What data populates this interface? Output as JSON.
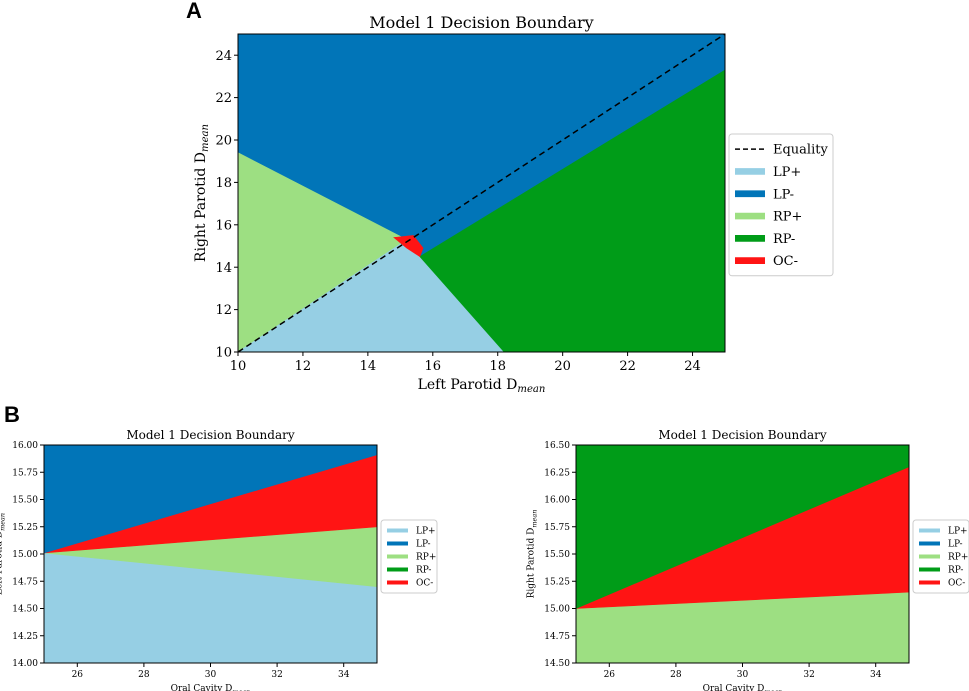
{
  "panel_labels": {
    "a": "A",
    "b": "B"
  },
  "colors": {
    "lp_plus": "#96cfe4",
    "lp_minus": "#0175b8",
    "rp_plus": "#9ddf82",
    "rp_minus": "#009c18",
    "oc_minus": "#ff1414",
    "equality": "#000000"
  },
  "chart_data": [
    {
      "type": "decision-boundary",
      "title": "Model 1 Decision Boundary",
      "xlabel": {
        "main": "Left Parotid D",
        "sub": "mean"
      },
      "ylabel": {
        "main": "Right Parotid D",
        "sub": "mean"
      },
      "xlim": [
        10,
        25
      ],
      "ylim": [
        10,
        25
      ],
      "xticks": [
        "10",
        "12",
        "14",
        "16",
        "18",
        "20",
        "22",
        "24"
      ],
      "yticks": [
        "10",
        "12",
        "14",
        "16",
        "18",
        "20",
        "22",
        "24"
      ],
      "regions": [
        {
          "class": "LP-",
          "color_key": "lp_minus",
          "polygon": [
            [
              10,
              25
            ],
            [
              25,
              25
            ],
            [
              25,
              23.3
            ],
            [
              15.6,
              14.5
            ],
            [
              15.2,
              15.3
            ],
            [
              10,
              19.4
            ]
          ]
        },
        {
          "class": "RP+",
          "color_key": "rp_plus",
          "polygon": [
            [
              10,
              19.4
            ],
            [
              15.2,
              15.3
            ],
            [
              10,
              10
            ]
          ]
        },
        {
          "class": "LP+",
          "color_key": "lp_plus",
          "polygon": [
            [
              10,
              10
            ],
            [
              15.2,
              15.3
            ],
            [
              15.6,
              14.5
            ],
            [
              18.2,
              10
            ]
          ]
        },
        {
          "class": "RP-",
          "color_key": "rp_minus",
          "polygon": [
            [
              18.2,
              10
            ],
            [
              15.6,
              14.5
            ],
            [
              25,
              23.3
            ],
            [
              25,
              10
            ]
          ]
        },
        {
          "class": "OC-",
          "color_key": "oc_minus",
          "polygon": [
            [
              14.8,
              15.4
            ],
            [
              15.4,
              15.5
            ],
            [
              15.7,
              14.9
            ],
            [
              15.6,
              14.5
            ],
            [
              15.2,
              14.9
            ]
          ]
        }
      ],
      "equality_line": [
        [
          10,
          10
        ],
        [
          25,
          25
        ]
      ],
      "legend": [
        {
          "label": "Equality",
          "style": "dashed",
          "color_key": "equality"
        },
        {
          "label": "LP+",
          "color_key": "lp_plus"
        },
        {
          "label": "LP-",
          "color_key": "lp_minus"
        },
        {
          "label": "RP+",
          "color_key": "rp_plus"
        },
        {
          "label": "RP-",
          "color_key": "rp_minus"
        },
        {
          "label": "OC-",
          "color_key": "oc_minus"
        }
      ],
      "legend_position": "right"
    },
    {
      "type": "decision-boundary",
      "title": "Model 1 Decision Boundary",
      "xlabel": {
        "main": "Oral Cavity D",
        "sub": "mean"
      },
      "ylabel": {
        "main": "Left Parotid D",
        "sub": "mean"
      },
      "xlim": [
        25,
        35
      ],
      "ylim": [
        14.0,
        16.0
      ],
      "xticks": [
        "26",
        "28",
        "30",
        "32",
        "34"
      ],
      "yticks": [
        "14.00",
        "14.25",
        "14.50",
        "14.75",
        "15.00",
        "15.25",
        "15.50",
        "15.75",
        "16.00"
      ],
      "regions": [
        {
          "class": "LP+",
          "color_key": "lp_plus",
          "polygon": [
            [
              25,
              14.0
            ],
            [
              35,
              14.0
            ],
            [
              35,
              14.7
            ],
            [
              25,
              15.01
            ]
          ]
        },
        {
          "class": "RP+",
          "color_key": "rp_plus",
          "polygon": [
            [
              25,
              15.01
            ],
            [
              35,
              14.7
            ],
            [
              35,
              15.25
            ]
          ]
        },
        {
          "class": "OC-",
          "color_key": "oc_minus",
          "polygon": [
            [
              25,
              15.01
            ],
            [
              35,
              15.25
            ],
            [
              35,
              15.91
            ]
          ]
        },
        {
          "class": "LP-",
          "color_key": "lp_minus",
          "polygon": [
            [
              25,
              15.01
            ],
            [
              35,
              15.91
            ],
            [
              35,
              16.0
            ],
            [
              25,
              16.0
            ]
          ]
        }
      ],
      "legend": [
        {
          "label": "LP+",
          "color_key": "lp_plus"
        },
        {
          "label": "LP-",
          "color_key": "lp_minus"
        },
        {
          "label": "RP+",
          "color_key": "rp_plus"
        },
        {
          "label": "RP-",
          "color_key": "rp_minus"
        },
        {
          "label": "OC-",
          "color_key": "oc_minus"
        }
      ],
      "legend_position": "right"
    },
    {
      "type": "decision-boundary",
      "title": "Model 1 Decision Boundary",
      "xlabel": {
        "main": "Oral Cavity D",
        "sub": "mean"
      },
      "ylabel": {
        "main": "Right Parotid D",
        "sub": "mean"
      },
      "xlim": [
        25,
        35
      ],
      "ylim": [
        14.5,
        16.5
      ],
      "xticks": [
        "26",
        "28",
        "30",
        "32",
        "34"
      ],
      "yticks": [
        "14.50",
        "14.75",
        "15.00",
        "15.25",
        "15.50",
        "15.75",
        "16.00",
        "16.25",
        "16.50"
      ],
      "regions": [
        {
          "class": "RP+",
          "color_key": "rp_plus",
          "polygon": [
            [
              25,
              14.5
            ],
            [
              35,
              14.5
            ],
            [
              35,
              15.15
            ],
            [
              25,
              15.0
            ]
          ]
        },
        {
          "class": "OC-",
          "color_key": "oc_minus",
          "polygon": [
            [
              25,
              15.0
            ],
            [
              35,
              15.15
            ],
            [
              35,
              16.3
            ]
          ]
        },
        {
          "class": "RP-",
          "color_key": "rp_minus",
          "polygon": [
            [
              25,
              15.0
            ],
            [
              35,
              16.3
            ],
            [
              35,
              16.5
            ],
            [
              25,
              16.5
            ]
          ]
        }
      ],
      "legend": [
        {
          "label": "LP+",
          "color_key": "lp_plus"
        },
        {
          "label": "LP-",
          "color_key": "lp_minus"
        },
        {
          "label": "RP+",
          "color_key": "rp_plus"
        },
        {
          "label": "RP-",
          "color_key": "rp_minus"
        },
        {
          "label": "OC-",
          "color_key": "oc_minus"
        }
      ],
      "legend_position": "right"
    }
  ]
}
